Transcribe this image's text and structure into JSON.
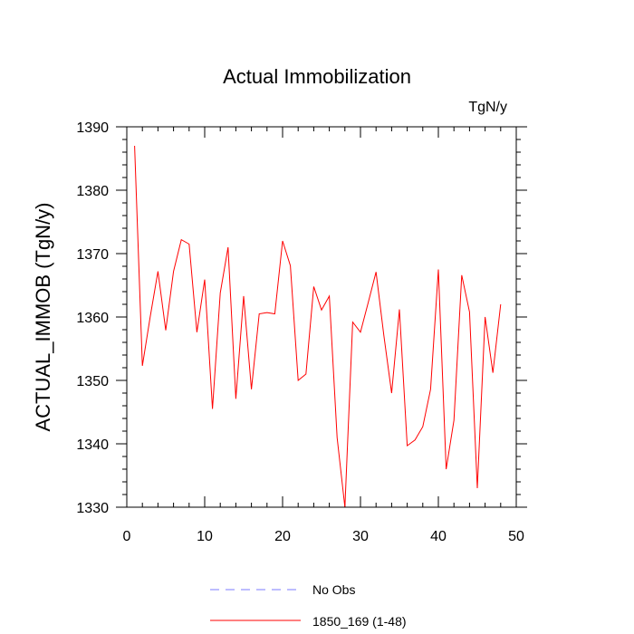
{
  "chart_data": {
    "type": "line",
    "title": "Actual Immobilization",
    "units": "TgN/y",
    "xlabel": "",
    "ylabel": "ACTUAL_IMMOB  (TgN/y)",
    "xlim": [
      0,
      50
    ],
    "ylim": [
      1330,
      1390
    ],
    "xticks": [
      0,
      10,
      20,
      30,
      40,
      50
    ],
    "yticks": [
      1330,
      1340,
      1350,
      1360,
      1370,
      1380,
      1390
    ],
    "xtick_labels": [
      "0",
      "10",
      "20",
      "30",
      "40",
      "50"
    ],
    "ytick_labels": [
      "1330",
      "1340",
      "1350",
      "1360",
      "1370",
      "1380",
      "1390"
    ],
    "series": [
      {
        "name": "1850_169 (1-48)",
        "color": "#ff0000",
        "style": "solid",
        "x": [
          1,
          2,
          3,
          4,
          5,
          6,
          7,
          8,
          9,
          10,
          11,
          12,
          13,
          14,
          15,
          16,
          17,
          18,
          19,
          20,
          21,
          22,
          23,
          24,
          25,
          26,
          27,
          28,
          29,
          30,
          31,
          32,
          33,
          34,
          35,
          36,
          37,
          38,
          39,
          40,
          41,
          42,
          43,
          44,
          45,
          46,
          47,
          48
        ],
        "values": [
          1387.0,
          1352.3,
          1360.0,
          1367.2,
          1357.9,
          1367.2,
          1372.2,
          1371.5,
          1357.6,
          1365.9,
          1345.5,
          1363.8,
          1371.0,
          1347.1,
          1363.3,
          1348.6,
          1360.5,
          1360.7,
          1360.5,
          1372.0,
          1368.1,
          1350.0,
          1351.0,
          1364.8,
          1361.1,
          1363.3,
          1341.0,
          1330.0,
          1359.2,
          1357.6,
          1362.3,
          1367.1,
          1357.1,
          1348.0,
          1361.2,
          1339.7,
          1340.6,
          1342.7,
          1348.6,
          1367.5,
          1336.0,
          1343.7,
          1366.6,
          1360.8,
          1333.0,
          1360.0,
          1351.2,
          1362.0
        ]
      }
    ],
    "legend": {
      "placement": "bottom-center",
      "items": [
        {
          "label": "No Obs",
          "color": "#7b7bff",
          "style": "dashed"
        },
        {
          "label": "1850_169 (1-48)",
          "color": "#ff0000",
          "style": "solid"
        }
      ]
    }
  }
}
